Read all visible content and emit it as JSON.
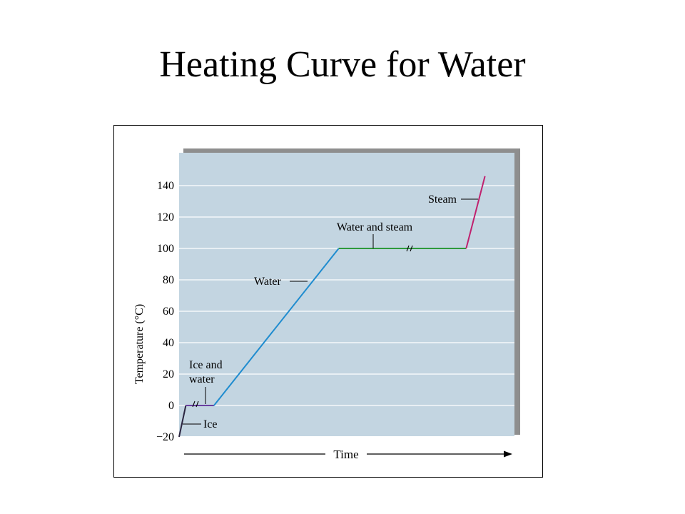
{
  "slide": {
    "title": "Heating Curve for Water"
  },
  "chart_data": {
    "type": "line",
    "title": "",
    "xlabel": "Time",
    "ylabel": "Temperature (°C)",
    "ylim": [
      -20,
      150
    ],
    "yticks": [
      -20,
      0,
      20,
      40,
      60,
      80,
      100,
      120,
      140
    ],
    "ytick_labels": [
      "−20",
      "0",
      "20",
      "40",
      "60",
      "80",
      "100",
      "120",
      "140"
    ],
    "grid": true,
    "x_axis_numeric": false,
    "series": [
      {
        "name": "Ice",
        "color": "#2b2540",
        "x": [
          0.0,
          2.0
        ],
        "y": [
          -20,
          0
        ]
      },
      {
        "name": "Ice and water",
        "color": "#6a3fa0",
        "x": [
          2.0,
          10.4
        ],
        "y": [
          0,
          0
        ]
      },
      {
        "name": "Water",
        "color": "#1f8ccf",
        "x": [
          10.4,
          47.6
        ],
        "y": [
          0,
          100
        ]
      },
      {
        "name": "Water and steam",
        "color": "#2e9a3c",
        "x": [
          47.6,
          85.6
        ],
        "y": [
          100,
          100
        ]
      },
      {
        "name": "Steam",
        "color": "#c0206e",
        "x": [
          85.6,
          91.2
        ],
        "y": [
          100,
          146
        ]
      }
    ],
    "labels": {
      "ice": "Ice",
      "ice_water_1": "Ice and",
      "ice_water_2": "water",
      "water": "Water",
      "water_steam": "Water and steam",
      "steam": "Steam"
    },
    "colors": {
      "plot_background": "#c3d5e1",
      "shadow": "#8e8e8e",
      "gridline": "#ffffff"
    }
  }
}
